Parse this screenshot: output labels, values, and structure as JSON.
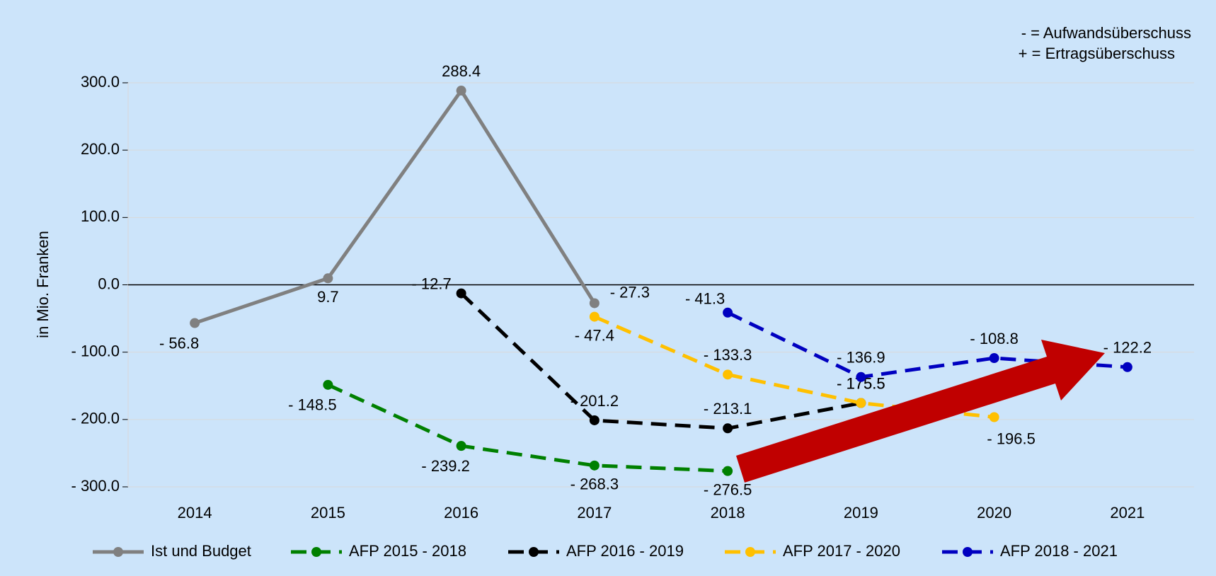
{
  "chart_data": {
    "type": "line",
    "y_label": "in Mio. Franken",
    "annotations": [
      "- = Aufwandsüberschuss",
      "+ = Ertragsüberschuss"
    ],
    "categories": [
      "2014",
      "2015",
      "2016",
      "2017",
      "2018",
      "2019",
      "2020",
      "2021"
    ],
    "ylim": [
      -300,
      300
    ],
    "yticks": [
      {
        "value": -300,
        "label": "- 300.0"
      },
      {
        "value": -200,
        "label": "- 200.0"
      },
      {
        "value": -100,
        "label": "- 100.0"
      },
      {
        "value": 0,
        "label": "0.0"
      },
      {
        "value": 100,
        "label": "100.0"
      },
      {
        "value": 200,
        "label": "200.0"
      },
      {
        "value": 300,
        "label": "300.0"
      }
    ],
    "grid": true,
    "legend": "bottom",
    "series": [
      {
        "name": "Ist und Budget",
        "color": "#808080",
        "dashed": false,
        "values": [
          -56.8,
          9.7,
          288.4,
          -27.3,
          null,
          null,
          null,
          null
        ],
        "value_labels": [
          "- 56.8",
          "9.7",
          "288.4",
          "- 27.3",
          null,
          null,
          null,
          null
        ]
      },
      {
        "name": "AFP 2015 - 2018",
        "color": "#008000",
        "dashed": true,
        "values": [
          null,
          -148.5,
          -239.2,
          -268.3,
          -276.5,
          null,
          null,
          null
        ],
        "value_labels": [
          null,
          "- 148.5",
          "- 239.2",
          "- 268.3",
          "- 276.5",
          null,
          null,
          null
        ]
      },
      {
        "name": "AFP 2016 - 2019",
        "color": "#000000",
        "dashed": true,
        "values": [
          null,
          null,
          -12.7,
          -201.2,
          -213.1,
          -175.5,
          null,
          null
        ],
        "value_labels": [
          null,
          null,
          "- 12.7",
          "- 201.2",
          "- 213.1",
          "- 175.5",
          null,
          null
        ]
      },
      {
        "name": "AFP 2017 - 2020",
        "color": "#ffc000",
        "dashed": true,
        "values": [
          null,
          null,
          null,
          -47.4,
          -133.3,
          -175.5,
          -196.5,
          null
        ],
        "value_labels": [
          null,
          null,
          null,
          "- 47.4",
          "- 133.3",
          "- 175.5",
          "- 196.5",
          null
        ]
      },
      {
        "name": "AFP 2018 - 2021",
        "color": "#0000c0",
        "dashed": true,
        "values": [
          null,
          null,
          null,
          null,
          -41.3,
          -136.9,
          -108.8,
          -122.2
        ],
        "value_labels": [
          null,
          null,
          null,
          null,
          "- 41.3",
          "- 136.9",
          "- 108.8",
          "- 122.2"
        ]
      }
    ]
  }
}
